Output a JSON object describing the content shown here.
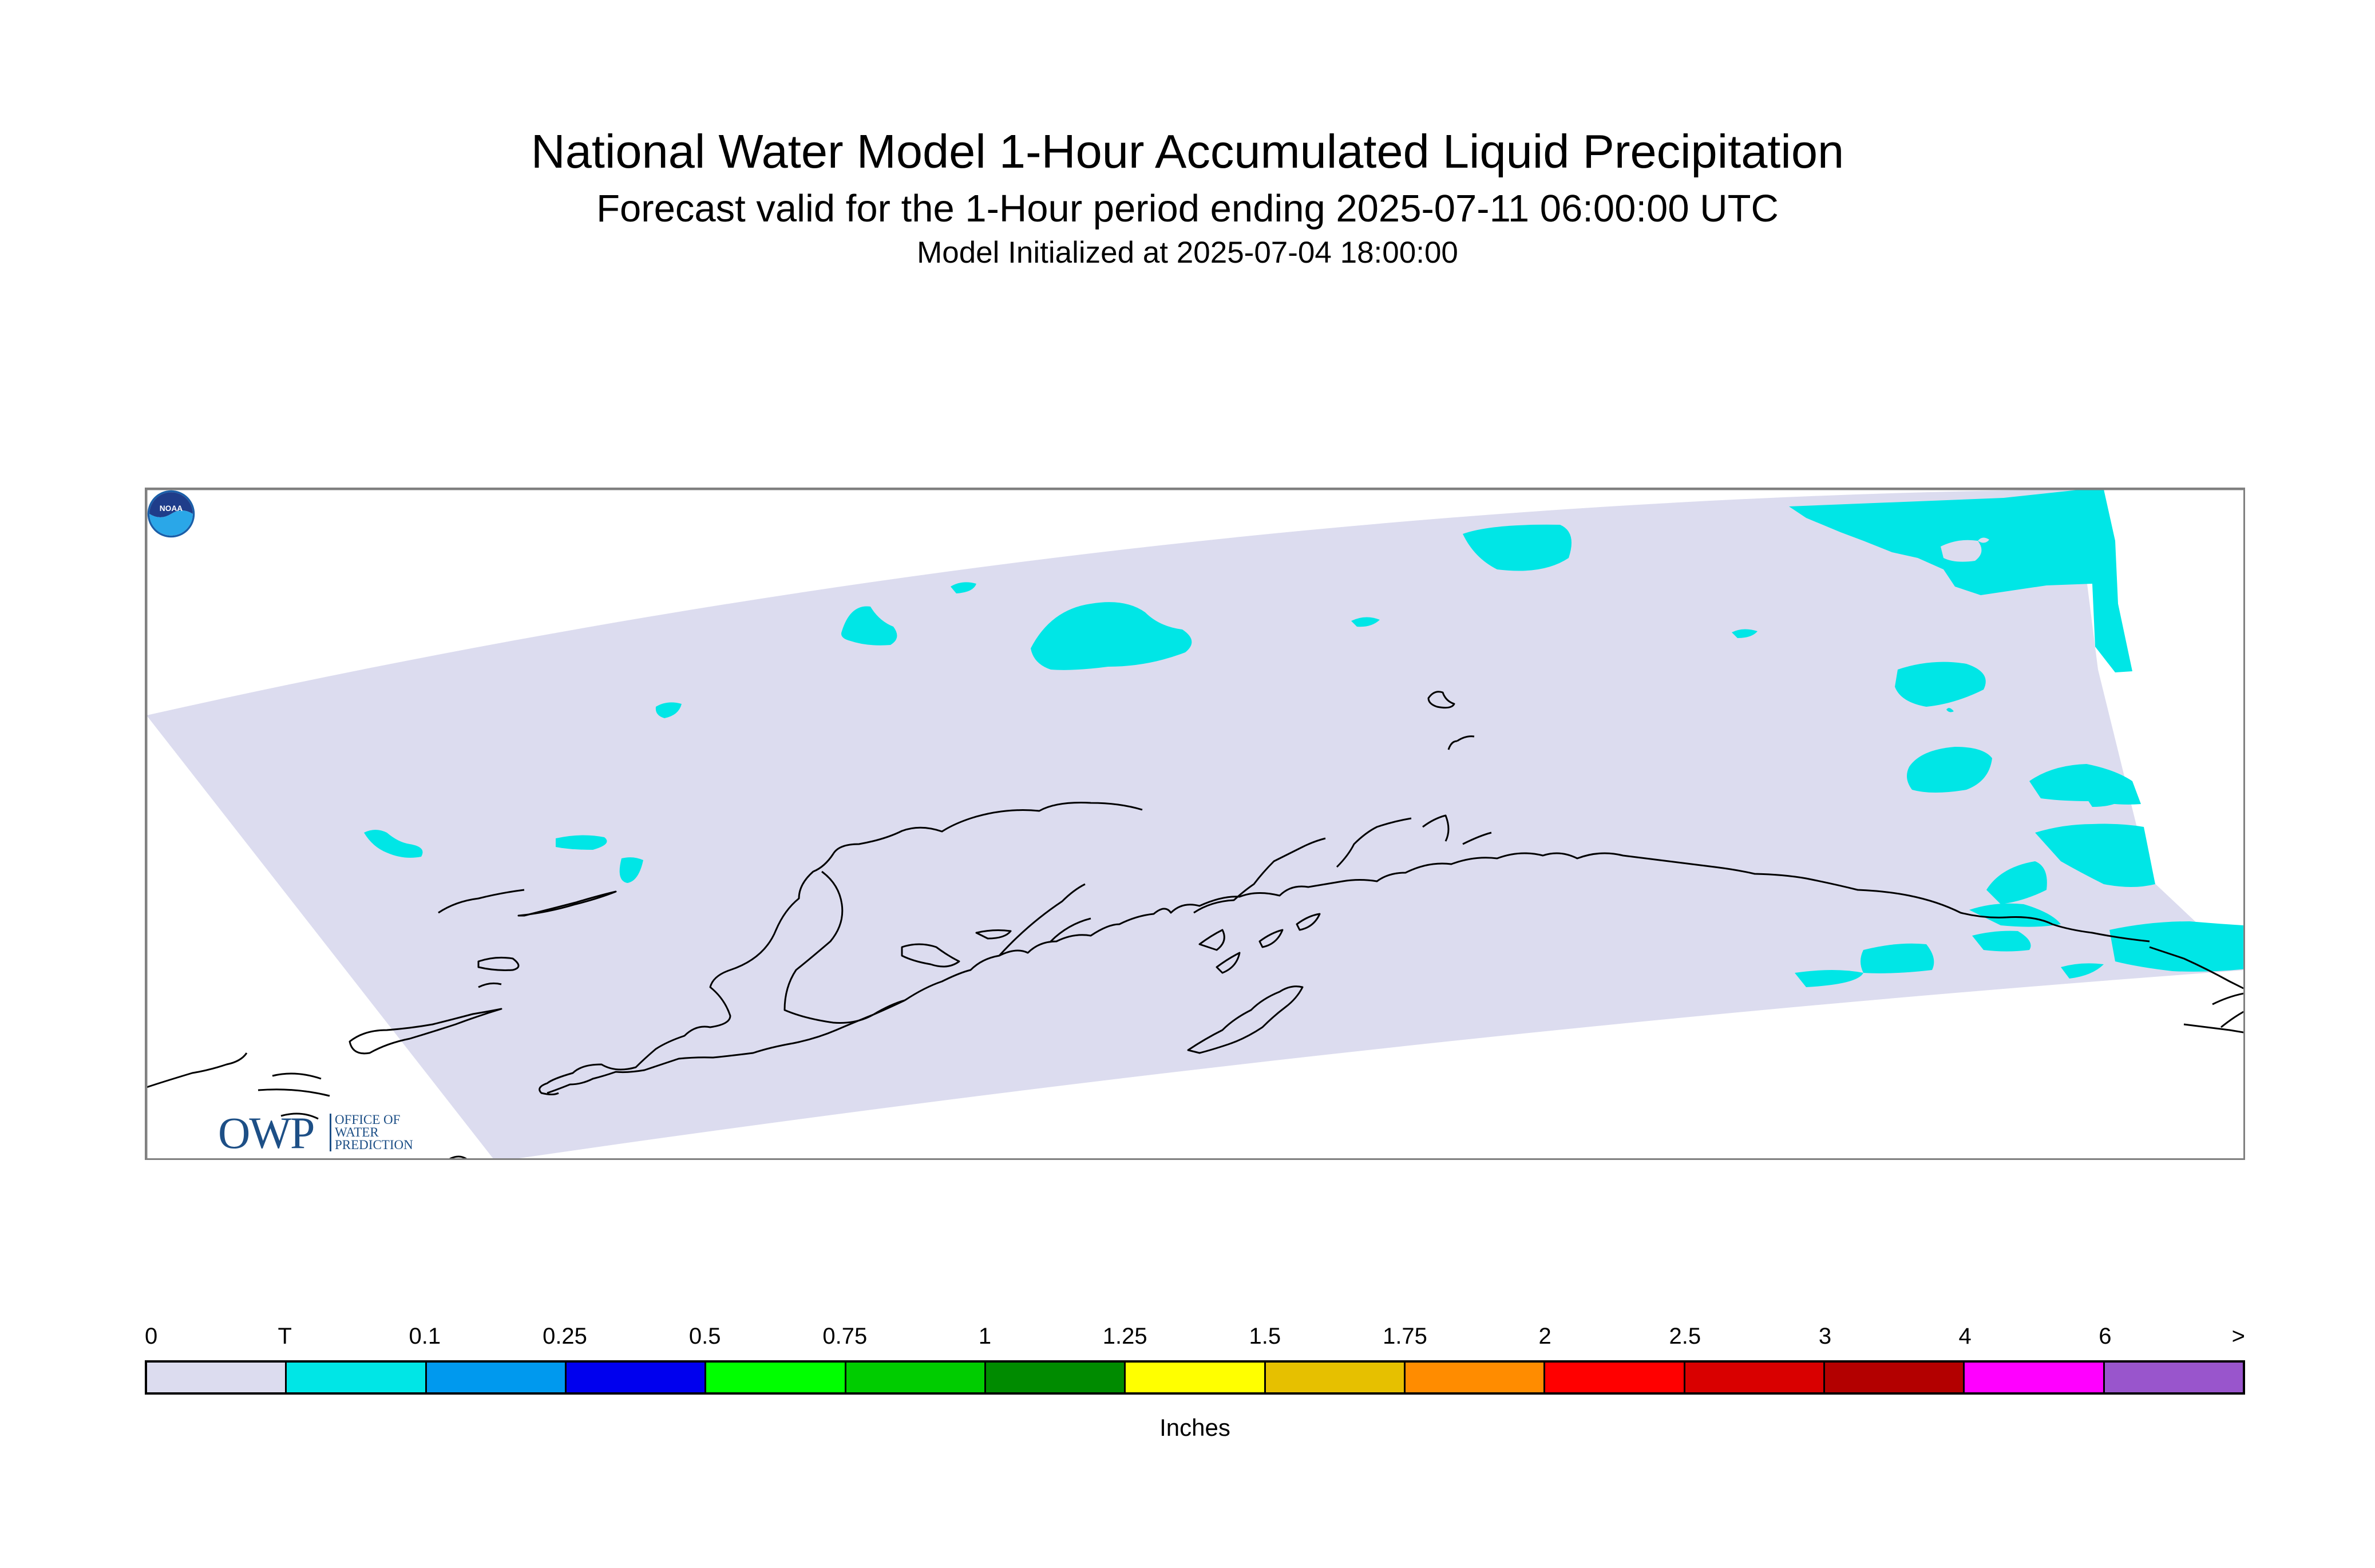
{
  "title": "National Water Model 1-Hour Accumulated Liquid Precipitation",
  "subtitle": "Forecast valid for the 1-Hour period ending 2025-07-11 06:00:00 UTC",
  "initialized": "Model Initialized at 2025-07-04 18:00:00",
  "map": {
    "region": "Alaska",
    "domain_color": "#dcdcef",
    "outside_color": "#ffffff",
    "coastline_color": "#000000",
    "precip_color": "#00e6e6",
    "precip_category": "T"
  },
  "logos": {
    "owp_letters": "OWP",
    "owp_text_lines": [
      "OFFICE OF",
      "WATER",
      "PREDICTION"
    ],
    "owp_color": "#1d4f86",
    "noaa_text": "NOAA"
  },
  "legend": {
    "tick_labels": [
      "0",
      "T",
      "0.1",
      "0.25",
      "0.5",
      "0.75",
      "1",
      "1.25",
      "1.5",
      "1.75",
      "2",
      "2.5",
      "3",
      "4",
      "6",
      ">"
    ],
    "colors": [
      "#dcdcef",
      "#00e6e6",
      "#0099ee",
      "#0000ee",
      "#00ff00",
      "#00cc00",
      "#008b00",
      "#ffff00",
      "#e6c000",
      "#ff8c00",
      "#ff0000",
      "#d90000",
      "#b30000",
      "#ff00ff",
      "#9955cc"
    ],
    "units": "Inches"
  }
}
